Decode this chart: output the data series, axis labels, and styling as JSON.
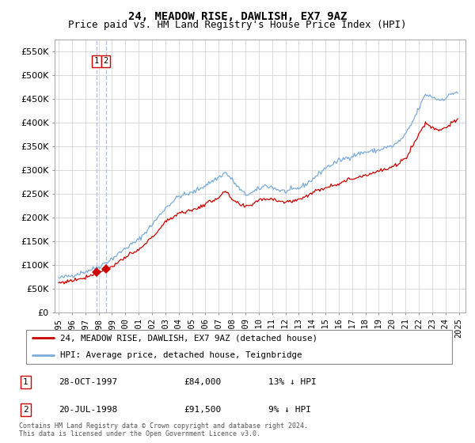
{
  "title": "24, MEADOW RISE, DAWLISH, EX7 9AZ",
  "subtitle": "Price paid vs. HM Land Registry's House Price Index (HPI)",
  "ylim": [
    0,
    575000
  ],
  "yticks": [
    0,
    50000,
    100000,
    150000,
    200000,
    250000,
    300000,
    350000,
    400000,
    450000,
    500000,
    550000
  ],
  "ytick_labels": [
    "£0",
    "£50K",
    "£100K",
    "£150K",
    "£200K",
    "£250K",
    "£300K",
    "£350K",
    "£400K",
    "£450K",
    "£500K",
    "£550K"
  ],
  "purchase_color": "#cc0000",
  "hpi_color": "#7aabda",
  "vline_color": "#aabbdd",
  "grid_color": "#cccccc",
  "background_color": "#ffffff",
  "fig_background": "#ffffff",
  "legend_entries": [
    "24, MEADOW RISE, DAWLISH, EX7 9AZ (detached house)",
    "HPI: Average price, detached house, Teignbridge"
  ],
  "table_rows": [
    {
      "num": "1",
      "date": "28-OCT-1997",
      "price": "£84,000",
      "hpi": "13% ↓ HPI"
    },
    {
      "num": "2",
      "date": "20-JUL-1998",
      "price": "£91,500",
      "hpi": "9% ↓ HPI"
    }
  ],
  "footer": "Contains HM Land Registry data © Crown copyright and database right 2024.\nThis data is licensed under the Open Government Licence v3.0.",
  "title_fontsize": 10,
  "subtitle_fontsize": 9,
  "tick_fontsize": 8,
  "purchase1_date": 1997.833,
  "purchase1_price": 84000,
  "purchase2_date": 1998.542,
  "purchase2_price": 91500,
  "hpi_anchors_t": [
    1995.0,
    1996.0,
    1997.0,
    1998.0,
    1999.0,
    2000.0,
    2001.0,
    2002.0,
    2003.0,
    2004.0,
    2005.0,
    2006.0,
    2007.0,
    2007.5,
    2008.0,
    2008.5,
    2009.0,
    2009.5,
    2010.0,
    2010.5,
    2011.0,
    2011.5,
    2012.0,
    2012.5,
    2013.0,
    2013.5,
    2014.0,
    2014.5,
    2015.0,
    2015.5,
    2016.0,
    2016.5,
    2017.0,
    2017.5,
    2018.0,
    2018.5,
    2019.0,
    2019.5,
    2020.0,
    2020.5,
    2021.0,
    2021.5,
    2022.0,
    2022.5,
    2023.0,
    2023.5,
    2024.0,
    2024.5,
    2024.9
  ],
  "hpi_anchors_v": [
    72000,
    78000,
    86000,
    96000,
    113000,
    135000,
    153000,
    185000,
    220000,
    245000,
    252000,
    268000,
    285000,
    295000,
    280000,
    262000,
    248000,
    252000,
    260000,
    268000,
    264000,
    258000,
    255000,
    258000,
    262000,
    270000,
    280000,
    292000,
    305000,
    312000,
    320000,
    325000,
    330000,
    335000,
    338000,
    340000,
    342000,
    348000,
    350000,
    360000,
    375000,
    400000,
    430000,
    460000,
    455000,
    448000,
    452000,
    462000,
    465000
  ],
  "red_anchors_t": [
    1995.0,
    1996.0,
    1997.0,
    1997.833,
    1998.542,
    1999.0,
    2000.0,
    2001.0,
    2002.0,
    2003.0,
    2004.0,
    2005.0,
    2006.0,
    2007.0,
    2007.5,
    2008.0,
    2008.5,
    2009.0,
    2009.5,
    2010.0,
    2011.0,
    2012.0,
    2013.0,
    2014.0,
    2015.0,
    2016.0,
    2017.0,
    2018.0,
    2019.0,
    2020.0,
    2021.0,
    2021.5,
    2022.0,
    2022.5,
    2023.0,
    2023.5,
    2024.0,
    2024.5,
    2024.9
  ],
  "red_anchors_v": [
    62000,
    67000,
    74000,
    84000,
    91500,
    97000,
    116000,
    131000,
    158000,
    190000,
    210000,
    215000,
    228000,
    243000,
    255000,
    238000,
    228000,
    222000,
    228000,
    238000,
    240000,
    232000,
    238000,
    252000,
    264000,
    272000,
    282000,
    290000,
    298000,
    305000,
    325000,
    350000,
    375000,
    400000,
    390000,
    385000,
    390000,
    400000,
    405000
  ]
}
